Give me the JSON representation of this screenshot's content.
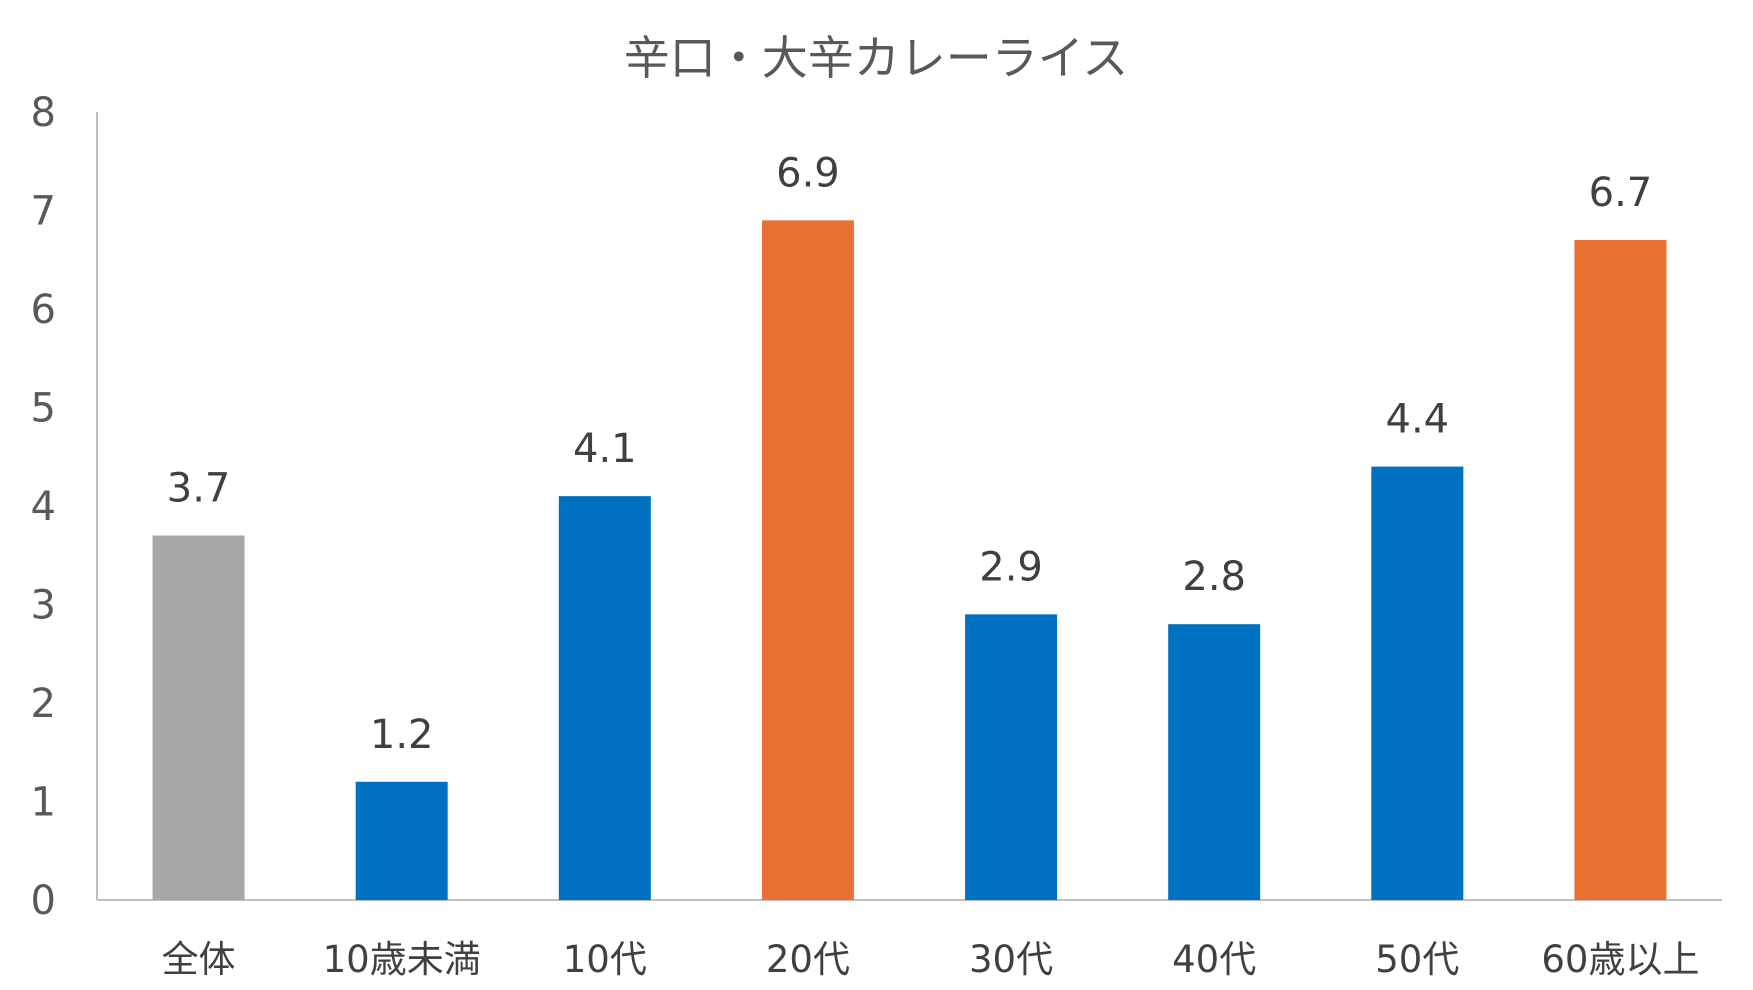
{
  "chart_data": {
    "type": "bar",
    "title": "辛口・大辛カレーライス",
    "categories": [
      "全体",
      "10歳未満",
      "10代",
      "20代",
      "30代",
      "40代",
      "50代",
      "60歳以上"
    ],
    "values": [
      3.7,
      1.2,
      4.1,
      6.9,
      2.9,
      2.8,
      4.4,
      6.7
    ],
    "value_labels": [
      "3.7",
      "1.2",
      "4.1",
      "6.9",
      "2.9",
      "2.8",
      "4.4",
      "6.7"
    ],
    "bar_colors": [
      "#a6a6a6",
      "#0070c0",
      "#0070c0",
      "#e97132",
      "#0070c0",
      "#0070c0",
      "#0070c0",
      "#e97132"
    ],
    "y_ticks": [
      "0",
      "1",
      "2",
      "3",
      "4",
      "5",
      "6",
      "7",
      "8"
    ],
    "ylim": [
      0,
      8
    ],
    "xlabel": "",
    "ylabel": "",
    "grid": false,
    "legend": "none"
  }
}
